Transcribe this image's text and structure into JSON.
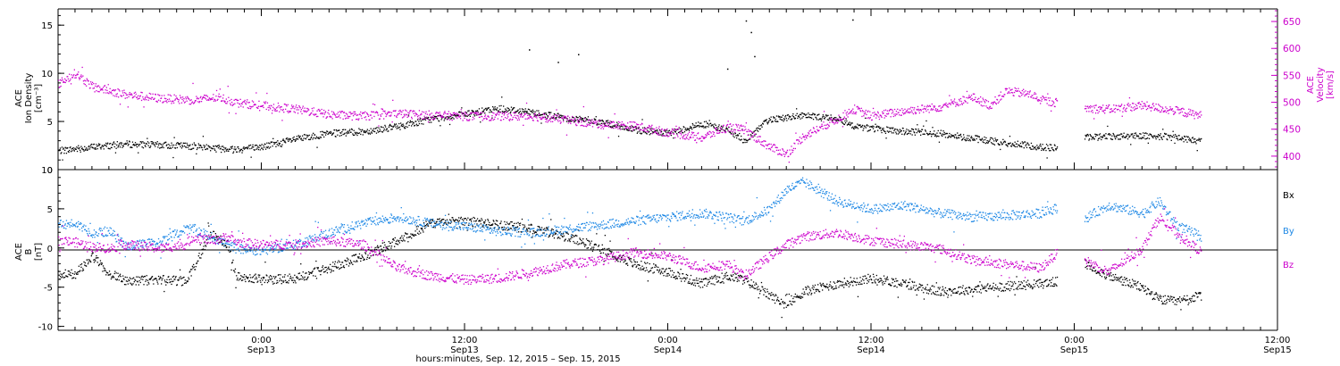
{
  "colors": {
    "black": "#000000",
    "magenta": "#cc00cc",
    "blue": "#1e88e5"
  },
  "x_axis": {
    "title": "hours:minutes, Sep. 12, 2015 – Sep. 15, 2015",
    "ticks": [
      {
        "time": "0:00",
        "date": "Sep13"
      },
      {
        "time": "12:00",
        "date": "Sep13"
      },
      {
        "time": "0:00",
        "date": "Sep14"
      },
      {
        "time": "12:00",
        "date": "Sep14"
      },
      {
        "time": "0:00",
        "date": "Sep15"
      },
      {
        "time": "12:00",
        "date": "Sep15"
      }
    ]
  },
  "chart_data": [
    {
      "type": "scatter",
      "panel": "top",
      "left_axis": {
        "label_lines": [
          "ACE",
          "Ion Density",
          "[cm⁻³]"
        ],
        "ylim": [
          0,
          16.5
        ],
        "ticks": [
          "0",
          "5",
          "10",
          "15"
        ]
      },
      "right_axis": {
        "label_lines": [
          "ACE",
          "Velocity",
          "[km/s]"
        ],
        "ylim": [
          375,
          670
        ],
        "ticks": [
          "400",
          "450",
          "500",
          "550",
          "600",
          "650"
        ]
      },
      "x_range_hours": [
        12,
        84
      ],
      "series": [
        {
          "key": "density",
          "color": "black",
          "axis": "left",
          "points": [
            [
              12,
              2
            ],
            [
              14,
              2.4
            ],
            [
              16,
              2.7
            ],
            [
              18,
              2.6
            ],
            [
              20,
              2.5
            ],
            [
              21.5,
              2.3
            ],
            [
              22.5,
              2.2
            ],
            [
              24,
              2.4
            ],
            [
              26,
              3.2
            ],
            [
              28,
              3.8
            ],
            [
              30,
              4
            ],
            [
              32,
              4.5
            ],
            [
              34,
              5.3
            ],
            [
              36,
              5.8
            ],
            [
              38,
              6.4
            ],
            [
              40,
              6
            ],
            [
              42,
              5.4
            ],
            [
              44,
              5
            ],
            [
              46,
              4.2
            ],
            [
              48,
              3.8
            ],
            [
              50,
              4.8
            ],
            [
              51.5,
              4.2
            ],
            [
              52.5,
              3
            ],
            [
              54,
              5.3
            ],
            [
              56,
              5.6
            ],
            [
              58,
              5.4
            ],
            [
              59,
              4.6
            ],
            [
              60,
              4.3
            ],
            [
              62,
              4
            ],
            [
              64,
              3.8
            ],
            [
              66,
              3.3
            ],
            [
              68,
              2.8
            ],
            [
              70,
              2.4
            ],
            [
              71,
              2.3
            ],
            [
              72,
              null
            ],
            [
              72.6,
              3.4
            ],
            [
              74,
              3.5
            ],
            [
              76,
              3.6
            ],
            [
              78,
              3.4
            ],
            [
              79.5,
              3
            ]
          ]
        },
        {
          "key": "velocity",
          "color": "magenta",
          "axis": "right",
          "points": [
            [
              12,
              535
            ],
            [
              13,
              555
            ],
            [
              14,
              530
            ],
            [
              16,
              515
            ],
            [
              18,
              508
            ],
            [
              20,
              505
            ],
            [
              21.5,
              510
            ],
            [
              22.5,
              500
            ],
            [
              24,
              495
            ],
            [
              26,
              488
            ],
            [
              28,
              478
            ],
            [
              30,
              475
            ],
            [
              32,
              480
            ],
            [
              34,
              477
            ],
            [
              36,
              475
            ],
            [
              38,
              475
            ],
            [
              40,
              475
            ],
            [
              42,
              468
            ],
            [
              44,
              460
            ],
            [
              46,
              457
            ],
            [
              48,
              445
            ],
            [
              50,
              435
            ],
            [
              51.5,
              455
            ],
            [
              52.5,
              450
            ],
            [
              54,
              418
            ],
            [
              55,
              405
            ],
            [
              56,
              438
            ],
            [
              58,
              470
            ],
            [
              59,
              488
            ],
            [
              60,
              475
            ],
            [
              62,
              485
            ],
            [
              64,
              492
            ],
            [
              66,
              510
            ],
            [
              67,
              495
            ],
            [
              68,
              522
            ],
            [
              69.5,
              515
            ],
            [
              70,
              505
            ],
            [
              71,
              500
            ],
            [
              72,
              null
            ],
            [
              72.6,
              490
            ],
            [
              74,
              488
            ],
            [
              76,
              495
            ],
            [
              78,
              485
            ],
            [
              79.5,
              476
            ]
          ]
        }
      ]
    },
    {
      "type": "scatter",
      "panel": "bottom",
      "left_axis": {
        "label_lines": [
          "ACE",
          "B",
          "[nT]"
        ],
        "ylim": [
          -10.5,
          10
        ],
        "ticks": [
          "-10",
          "-5",
          "0",
          "5",
          "10"
        ]
      },
      "x_range_hours": [
        12,
        84
      ],
      "legend": [
        "Bx",
        "By",
        "Bz"
      ],
      "series": [
        {
          "key": "Bx",
          "color": "black",
          "points": [
            [
              12,
              -3.4
            ],
            [
              13,
              -3.2
            ],
            [
              14,
              -1
            ],
            [
              15,
              -3.2
            ],
            [
              16,
              -4.1
            ],
            [
              18,
              -4
            ],
            [
              19.5,
              -4.2
            ],
            [
              20,
              -2.4
            ],
            [
              21,
              2
            ],
            [
              22,
              0.5
            ],
            [
              22.5,
              -3.6
            ],
            [
              24,
              -4
            ],
            [
              26,
              -3.8
            ],
            [
              28,
              -2.5
            ],
            [
              30,
              -1
            ],
            [
              32,
              1
            ],
            [
              34,
              3.2
            ],
            [
              36,
              3.5
            ],
            [
              38,
              3
            ],
            [
              40,
              2.5
            ],
            [
              42,
              1.5
            ],
            [
              44,
              0
            ],
            [
              46,
              -2
            ],
            [
              48,
              -3
            ],
            [
              50,
              -4.5
            ],
            [
              51.5,
              -3.5
            ],
            [
              52.5,
              -4
            ],
            [
              54,
              -6
            ],
            [
              55,
              -7.2
            ],
            [
              56,
              -5.5
            ],
            [
              58,
              -4.5
            ],
            [
              60,
              -3.8
            ],
            [
              62,
              -4.5
            ],
            [
              64,
              -5.5
            ],
            [
              66,
              -5.2
            ],
            [
              68,
              -4.8
            ],
            [
              70,
              -4.5
            ],
            [
              71,
              -4.2
            ],
            [
              72,
              null
            ],
            [
              72.6,
              -2
            ],
            [
              74,
              -3.5
            ],
            [
              76,
              -5
            ],
            [
              77,
              -6.5
            ],
            [
              78,
              -6.8
            ],
            [
              79.5,
              -6
            ]
          ]
        },
        {
          "key": "By",
          "color": "blue",
          "points": [
            [
              12,
              3
            ],
            [
              13,
              3.2
            ],
            [
              14,
              2
            ],
            [
              15,
              2.2
            ],
            [
              16,
              0.3
            ],
            [
              18,
              0.8
            ],
            [
              19.5,
              2.5
            ],
            [
              20,
              2.5
            ],
            [
              21,
              1.5
            ],
            [
              22,
              0.5
            ],
            [
              22.5,
              0
            ],
            [
              24,
              -0.3
            ],
            [
              26,
              0.5
            ],
            [
              28,
              2
            ],
            [
              30,
              3.2
            ],
            [
              32,
              4
            ],
            [
              34,
              3.2
            ],
            [
              36,
              2.8
            ],
            [
              38,
              2.2
            ],
            [
              40,
              2
            ],
            [
              42,
              2.5
            ],
            [
              44,
              3
            ],
            [
              46,
              3.5
            ],
            [
              48,
              4
            ],
            [
              50,
              4.5
            ],
            [
              51.5,
              4
            ],
            [
              52.5,
              3.5
            ],
            [
              54,
              5
            ],
            [
              55,
              7.5
            ],
            [
              56,
              8.5
            ],
            [
              58,
              6
            ],
            [
              60,
              5
            ],
            [
              62,
              5.5
            ],
            [
              64,
              4.5
            ],
            [
              66,
              4
            ],
            [
              68,
              4.2
            ],
            [
              70,
              4.5
            ],
            [
              71,
              5.2
            ],
            [
              72,
              null
            ],
            [
              72.6,
              3.8
            ],
            [
              74,
              5.5
            ],
            [
              76,
              4.5
            ],
            [
              77,
              6
            ],
            [
              78,
              3
            ],
            [
              79.5,
              1.5
            ]
          ]
        },
        {
          "key": "Bz",
          "color": "magenta",
          "points": [
            [
              12,
              1
            ],
            [
              13,
              0.8
            ],
            [
              14,
              0.2
            ],
            [
              15,
              0
            ],
            [
              16,
              0.5
            ],
            [
              18,
              0
            ],
            [
              19.5,
              0.5
            ],
            [
              20,
              1.5
            ],
            [
              21,
              1
            ],
            [
              22,
              1.5
            ],
            [
              22.5,
              0.8
            ],
            [
              24,
              0.5
            ],
            [
              26,
              0.5
            ],
            [
              28,
              1
            ],
            [
              30,
              0.5
            ],
            [
              32,
              -2.5
            ],
            [
              34,
              -3.5
            ],
            [
              36,
              -4
            ],
            [
              38,
              -3.8
            ],
            [
              40,
              -3
            ],
            [
              42,
              -2
            ],
            [
              44,
              -1.5
            ],
            [
              46,
              -0.5
            ],
            [
              48,
              -1
            ],
            [
              50,
              -2.5
            ],
            [
              51.5,
              -2
            ],
            [
              52.5,
              -3.5
            ],
            [
              54,
              -1
            ],
            [
              55,
              0.5
            ],
            [
              56,
              1.5
            ],
            [
              58,
              2
            ],
            [
              60,
              1
            ],
            [
              62,
              0.5
            ],
            [
              64,
              0
            ],
            [
              66,
              -1.5
            ],
            [
              68,
              -2
            ],
            [
              70,
              -2.5
            ],
            [
              71,
              -0.5
            ],
            [
              72,
              null
            ],
            [
              72.6,
              -1.5
            ],
            [
              74,
              -3
            ],
            [
              76,
              0
            ],
            [
              77,
              4
            ],
            [
              78,
              2
            ],
            [
              79.5,
              -0.5
            ]
          ]
        }
      ]
    }
  ]
}
